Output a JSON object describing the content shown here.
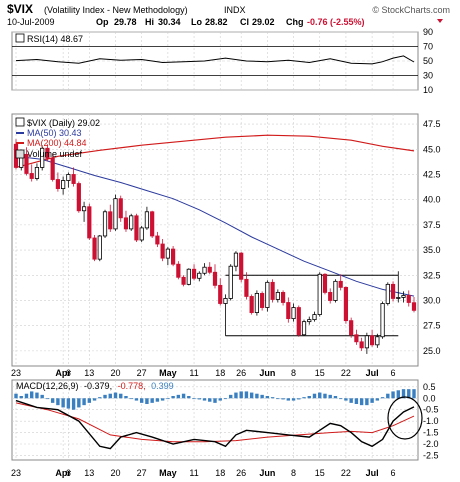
{
  "header": {
    "symbol": "$VIX",
    "name": "(Volatility Index - New Methodology)",
    "exchange": "INDX",
    "date": "10-Jul-2009",
    "open_label": "Op",
    "open": "29.78",
    "high_label": "Hi",
    "high": "30.34",
    "low_label": "Lo",
    "low": "28.82",
    "close_label": "Cl",
    "close": "29.02",
    "change_label": "Chg",
    "change": "-0.76 (-2.55%)",
    "watermark": "© StockCharts.com"
  },
  "rsi_panel": {
    "label": "RSI(14) 48.67",
    "ticks": [
      "90",
      "70",
      "50",
      "30",
      "10"
    ]
  },
  "main_panel": {
    "legend": [
      {
        "text": "$VIX (Daily) 29.02",
        "color": "#000000"
      },
      {
        "text": "MA(50) 30.43",
        "color": "#2b3a9e"
      },
      {
        "text": "MA(200) 44.84",
        "color": "#d11a1a"
      },
      {
        "text": "Volume undef",
        "color": "#000000"
      }
    ],
    "ticks": [
      "47.5",
      "45.0",
      "42.5",
      "40.0",
      "37.5",
      "35.0",
      "32.5",
      "30.0",
      "27.5",
      "25.0"
    ]
  },
  "macd_panel": {
    "label_prefix": "MACD(12,26,9)",
    "val1": "-0.379,",
    "val2": "-0.778,",
    "val3": "0.399",
    "ticks": [
      "0.5",
      "0.0",
      "-0.5",
      "-1.0",
      "-1.5",
      "-2.0",
      "-2.5"
    ]
  },
  "x_axis": {
    "labels": [
      "23",
      "Apr",
      "6",
      "13",
      "20",
      "27",
      "May",
      "11",
      "18",
      "26",
      "Jun",
      "8",
      "15",
      "22",
      "Jul",
      "6"
    ]
  },
  "colors": {
    "up": "#000000",
    "down": "#cc1133",
    "ma50": "#2b3a9e",
    "ma200": "#d11a1a",
    "macd": "#000000",
    "signal": "#d11a1a",
    "hist": "#3a7fc0",
    "grid": "#cfcfcf"
  },
  "chart_data": {
    "type": "candlestick",
    "dates": [
      "2009-03-23",
      "2009-03-24",
      "2009-03-25",
      "2009-03-26",
      "2009-03-27",
      "2009-03-30",
      "2009-03-31",
      "2009-04-01",
      "2009-04-02",
      "2009-04-03",
      "2009-04-06",
      "2009-04-07",
      "2009-04-08",
      "2009-04-09",
      "2009-04-13",
      "2009-04-14",
      "2009-04-15",
      "2009-04-16",
      "2009-04-17",
      "2009-04-20",
      "2009-04-21",
      "2009-04-22",
      "2009-04-23",
      "2009-04-24",
      "2009-04-27",
      "2009-04-28",
      "2009-04-29",
      "2009-04-30",
      "2009-05-01",
      "2009-05-04",
      "2009-05-05",
      "2009-05-06",
      "2009-05-07",
      "2009-05-08",
      "2009-05-11",
      "2009-05-12",
      "2009-05-13",
      "2009-05-14",
      "2009-05-15",
      "2009-05-18",
      "2009-05-19",
      "2009-05-20",
      "2009-05-21",
      "2009-05-22",
      "2009-05-26",
      "2009-05-27",
      "2009-05-28",
      "2009-05-29",
      "2009-06-01",
      "2009-06-02",
      "2009-06-03",
      "2009-06-04",
      "2009-06-05",
      "2009-06-08",
      "2009-06-09",
      "2009-06-10",
      "2009-06-11",
      "2009-06-12",
      "2009-06-15",
      "2009-06-16",
      "2009-06-17",
      "2009-06-18",
      "2009-06-19",
      "2009-06-22",
      "2009-06-23",
      "2009-06-24",
      "2009-06-25",
      "2009-06-26",
      "2009-06-29",
      "2009-06-30",
      "2009-07-01",
      "2009-07-02",
      "2009-07-06",
      "2009-07-07",
      "2009-07-08",
      "2009-07-09",
      "2009-07-10"
    ],
    "ohlc": [
      [
        45.5,
        46.0,
        43.0,
        43.2
      ],
      [
        43.2,
        44.6,
        42.9,
        44.5
      ],
      [
        44.5,
        45.2,
        42.4,
        42.6
      ],
      [
        42.6,
        43.5,
        41.8,
        42.1
      ],
      [
        42.1,
        43.6,
        41.9,
        43.2
      ],
      [
        43.2,
        45.4,
        42.9,
        45.1
      ],
      [
        45.1,
        45.5,
        43.8,
        44.1
      ],
      [
        44.1,
        44.6,
        41.8,
        42.0
      ],
      [
        42.0,
        42.7,
        40.8,
        41.1
      ],
      [
        41.1,
        42.3,
        40.5,
        41.9
      ],
      [
        41.9,
        42.7,
        41.2,
        42.5
      ],
      [
        42.5,
        43.2,
        41.3,
        41.6
      ],
      [
        41.6,
        41.8,
        38.7,
        38.9
      ],
      [
        38.9,
        39.8,
        37.8,
        39.3
      ],
      [
        39.3,
        39.6,
        36.0,
        36.2
      ],
      [
        36.2,
        36.5,
        33.9,
        34.1
      ],
      [
        34.1,
        36.5,
        33.9,
        36.4
      ],
      [
        36.4,
        39.0,
        36.2,
        38.8
      ],
      [
        38.8,
        39.5,
        36.8,
        37.1
      ],
      [
        37.1,
        40.5,
        36.9,
        40.1
      ],
      [
        40.1,
        40.4,
        37.8,
        38.2
      ],
      [
        38.2,
        38.9,
        36.8,
        37.1
      ],
      [
        37.1,
        38.6,
        36.9,
        38.4
      ],
      [
        38.4,
        38.6,
        35.8,
        36.0
      ],
      [
        36.0,
        37.4,
        35.8,
        37.2
      ],
      [
        37.2,
        39.3,
        37.0,
        38.8
      ],
      [
        38.8,
        38.9,
        36.2,
        36.4
      ],
      [
        36.4,
        36.8,
        35.3,
        35.6
      ],
      [
        35.6,
        36.1,
        33.9,
        34.2
      ],
      [
        34.2,
        35.3,
        33.5,
        35.1
      ],
      [
        35.1,
        35.4,
        33.4,
        33.6
      ],
      [
        33.6,
        33.9,
        32.1,
        32.3
      ],
      [
        32.3,
        32.5,
        31.4,
        31.6
      ],
      [
        31.6,
        33.2,
        31.5,
        33.1
      ],
      [
        33.1,
        33.6,
        32.0,
        32.2
      ],
      [
        32.2,
        32.9,
        31.9,
        32.7
      ],
      [
        32.7,
        33.7,
        32.5,
        33.3
      ],
      [
        33.3,
        33.8,
        32.6,
        32.8
      ],
      [
        32.8,
        33.6,
        31.2,
        31.5
      ],
      [
        31.5,
        32.2,
        29.5,
        29.7
      ],
      [
        29.7,
        30.6,
        26.5,
        30.2
      ],
      [
        30.2,
        33.6,
        30.0,
        33.4
      ],
      [
        33.4,
        34.9,
        32.9,
        34.7
      ],
      [
        34.7,
        34.8,
        31.8,
        32.1
      ],
      [
        32.1,
        32.8,
        30.1,
        30.4
      ],
      [
        30.4,
        30.6,
        28.6,
        28.8
      ],
      [
        28.8,
        31.0,
        28.5,
        30.7
      ],
      [
        30.7,
        30.9,
        29.0,
        29.3
      ],
      [
        29.3,
        32.0,
        28.9,
        31.8
      ],
      [
        31.8,
        32.1,
        29.8,
        30.1
      ],
      [
        30.1,
        31.1,
        29.8,
        30.8
      ],
      [
        30.8,
        31.0,
        29.5,
        29.8
      ],
      [
        29.8,
        30.3,
        27.8,
        28.2
      ],
      [
        28.2,
        29.7,
        27.9,
        29.3
      ],
      [
        29.3,
        29.5,
        26.4,
        26.6
      ],
      [
        26.6,
        28.1,
        26.5,
        27.9
      ],
      [
        27.9,
        28.4,
        27.6,
        28.1
      ],
      [
        28.1,
        28.9,
        27.9,
        28.6
      ],
      [
        28.6,
        32.8,
        28.4,
        32.6
      ],
      [
        32.6,
        32.7,
        30.6,
        30.8
      ],
      [
        30.8,
        31.2,
        29.7,
        30.0
      ],
      [
        30.0,
        32.1,
        29.8,
        31.9
      ],
      [
        31.9,
        32.6,
        31.0,
        31.3
      ],
      [
        31.3,
        31.4,
        27.7,
        28.0
      ],
      [
        28.0,
        28.3,
        26.3,
        26.6
      ],
      [
        26.6,
        27.1,
        25.6,
        25.9
      ],
      [
        25.9,
        26.3,
        25.0,
        25.3
      ],
      [
        25.3,
        26.8,
        24.7,
        26.5
      ],
      [
        26.5,
        27.1,
        25.4,
        25.6
      ],
      [
        25.6,
        26.7,
        25.3,
        26.4
      ],
      [
        26.4,
        29.9,
        26.2,
        29.7
      ],
      [
        29.7,
        31.8,
        29.5,
        31.6
      ],
      [
        31.6,
        31.9,
        29.9,
        30.2
      ],
      [
        30.2,
        32.9,
        29.8,
        30.3
      ],
      [
        30.3,
        30.9,
        29.8,
        30.5
      ],
      [
        30.5,
        31.0,
        29.4,
        29.8
      ],
      [
        29.78,
        30.34,
        28.82,
        29.02
      ]
    ],
    "ma50": [
      [
        0,
        44.3
      ],
      [
        5,
        44.0
      ],
      [
        10,
        43.2
      ],
      [
        15,
        42.4
      ],
      [
        20,
        41.7
      ],
      [
        25,
        40.9
      ],
      [
        30,
        40.1
      ],
      [
        35,
        39.0
      ],
      [
        40,
        37.7
      ],
      [
        45,
        36.3
      ],
      [
        50,
        35.1
      ],
      [
        55,
        33.9
      ],
      [
        60,
        32.9
      ],
      [
        65,
        31.9
      ],
      [
        70,
        31.1
      ],
      [
        76,
        30.43
      ]
    ],
    "ma200": [
      [
        0,
        43.2
      ],
      [
        8,
        44.3
      ],
      [
        16,
        44.9
      ],
      [
        24,
        45.4
      ],
      [
        32,
        45.8
      ],
      [
        40,
        46.2
      ],
      [
        48,
        46.4
      ],
      [
        56,
        46.3
      ],
      [
        64,
        45.9
      ],
      [
        70,
        45.3
      ],
      [
        76,
        44.84
      ]
    ],
    "rsi": [
      [
        0,
        50.5
      ],
      [
        4,
        52
      ],
      [
        8,
        49
      ],
      [
        12,
        47
      ],
      [
        16,
        53
      ],
      [
        20,
        51
      ],
      [
        24,
        52
      ],
      [
        28,
        48
      ],
      [
        32,
        49
      ],
      [
        36,
        50
      ],
      [
        40,
        54
      ],
      [
        44,
        50
      ],
      [
        48,
        49
      ],
      [
        52,
        51
      ],
      [
        56,
        48
      ],
      [
        60,
        53
      ],
      [
        64,
        47
      ],
      [
        68,
        46
      ],
      [
        70,
        49
      ],
      [
        72,
        54
      ],
      [
        74,
        57
      ],
      [
        76,
        48.67
      ]
    ],
    "rsi_ylim": [
      10,
      90
    ],
    "price_ylim": [
      23.5,
      48.5
    ],
    "horizontal_lines": [
      32.5,
      26.5
    ],
    "macd": [
      [
        0,
        -0.1
      ],
      [
        4,
        -0.4
      ],
      [
        8,
        -0.5
      ],
      [
        12,
        -1.0
      ],
      [
        16,
        -2.1
      ],
      [
        18,
        -2.2
      ],
      [
        20,
        -1.7
      ],
      [
        23,
        -1.5
      ],
      [
        26,
        -1.7
      ],
      [
        30,
        -2.0
      ],
      [
        34,
        -1.8
      ],
      [
        38,
        -1.9
      ],
      [
        40,
        -2.1
      ],
      [
        42,
        -1.6
      ],
      [
        44,
        -1.4
      ],
      [
        48,
        -1.5
      ],
      [
        52,
        -1.6
      ],
      [
        56,
        -1.7
      ],
      [
        58,
        -1.4
      ],
      [
        60,
        -1.1
      ],
      [
        62,
        -1.2
      ],
      [
        64,
        -1.5
      ],
      [
        66,
        -1.9
      ],
      [
        68,
        -2.1
      ],
      [
        70,
        -1.8
      ],
      [
        72,
        -1.0
      ],
      [
        74,
        -0.6
      ],
      [
        76,
        -0.379
      ]
    ],
    "signal": [
      [
        0,
        -0.2
      ],
      [
        6,
        -0.5
      ],
      [
        12,
        -0.9
      ],
      [
        18,
        -1.6
      ],
      [
        24,
        -1.8
      ],
      [
        30,
        -1.9
      ],
      [
        36,
        -1.9
      ],
      [
        42,
        -1.85
      ],
      [
        48,
        -1.7
      ],
      [
        54,
        -1.6
      ],
      [
        60,
        -1.5
      ],
      [
        64,
        -1.45
      ],
      [
        68,
        -1.5
      ],
      [
        72,
        -1.2
      ],
      [
        76,
        -0.778
      ]
    ],
    "histogram": [
      0.2,
      0.1,
      0.2,
      0.3,
      0.25,
      0.15,
      0.0,
      -0.2,
      -0.3,
      -0.4,
      -0.45,
      -0.5,
      -0.4,
      -0.3,
      -0.2,
      -0.1,
      0.05,
      0.15,
      0.2,
      0.25,
      0.2,
      0.1,
      0.0,
      -0.1,
      -0.2,
      -0.25,
      -0.2,
      -0.15,
      -0.1,
      0.0,
      0.1,
      0.15,
      0.2,
      0.1,
      0.0,
      -0.05,
      -0.1,
      -0.15,
      -0.2,
      -0.1,
      0.0,
      0.15,
      0.25,
      0.3,
      0.3,
      0.25,
      0.2,
      0.15,
      0.1,
      0.05,
      0.0,
      -0.05,
      -0.1,
      -0.1,
      -0.05,
      0.05,
      0.1,
      0.2,
      0.25,
      0.2,
      0.15,
      0.1,
      0.0,
      -0.1,
      -0.2,
      -0.25,
      -0.3,
      -0.3,
      -0.2,
      -0.1,
      0.05,
      0.2,
      0.3,
      0.35,
      0.4,
      0.4,
      0.399
    ],
    "macd_ylim": [
      -2.7,
      0.8
    ]
  }
}
